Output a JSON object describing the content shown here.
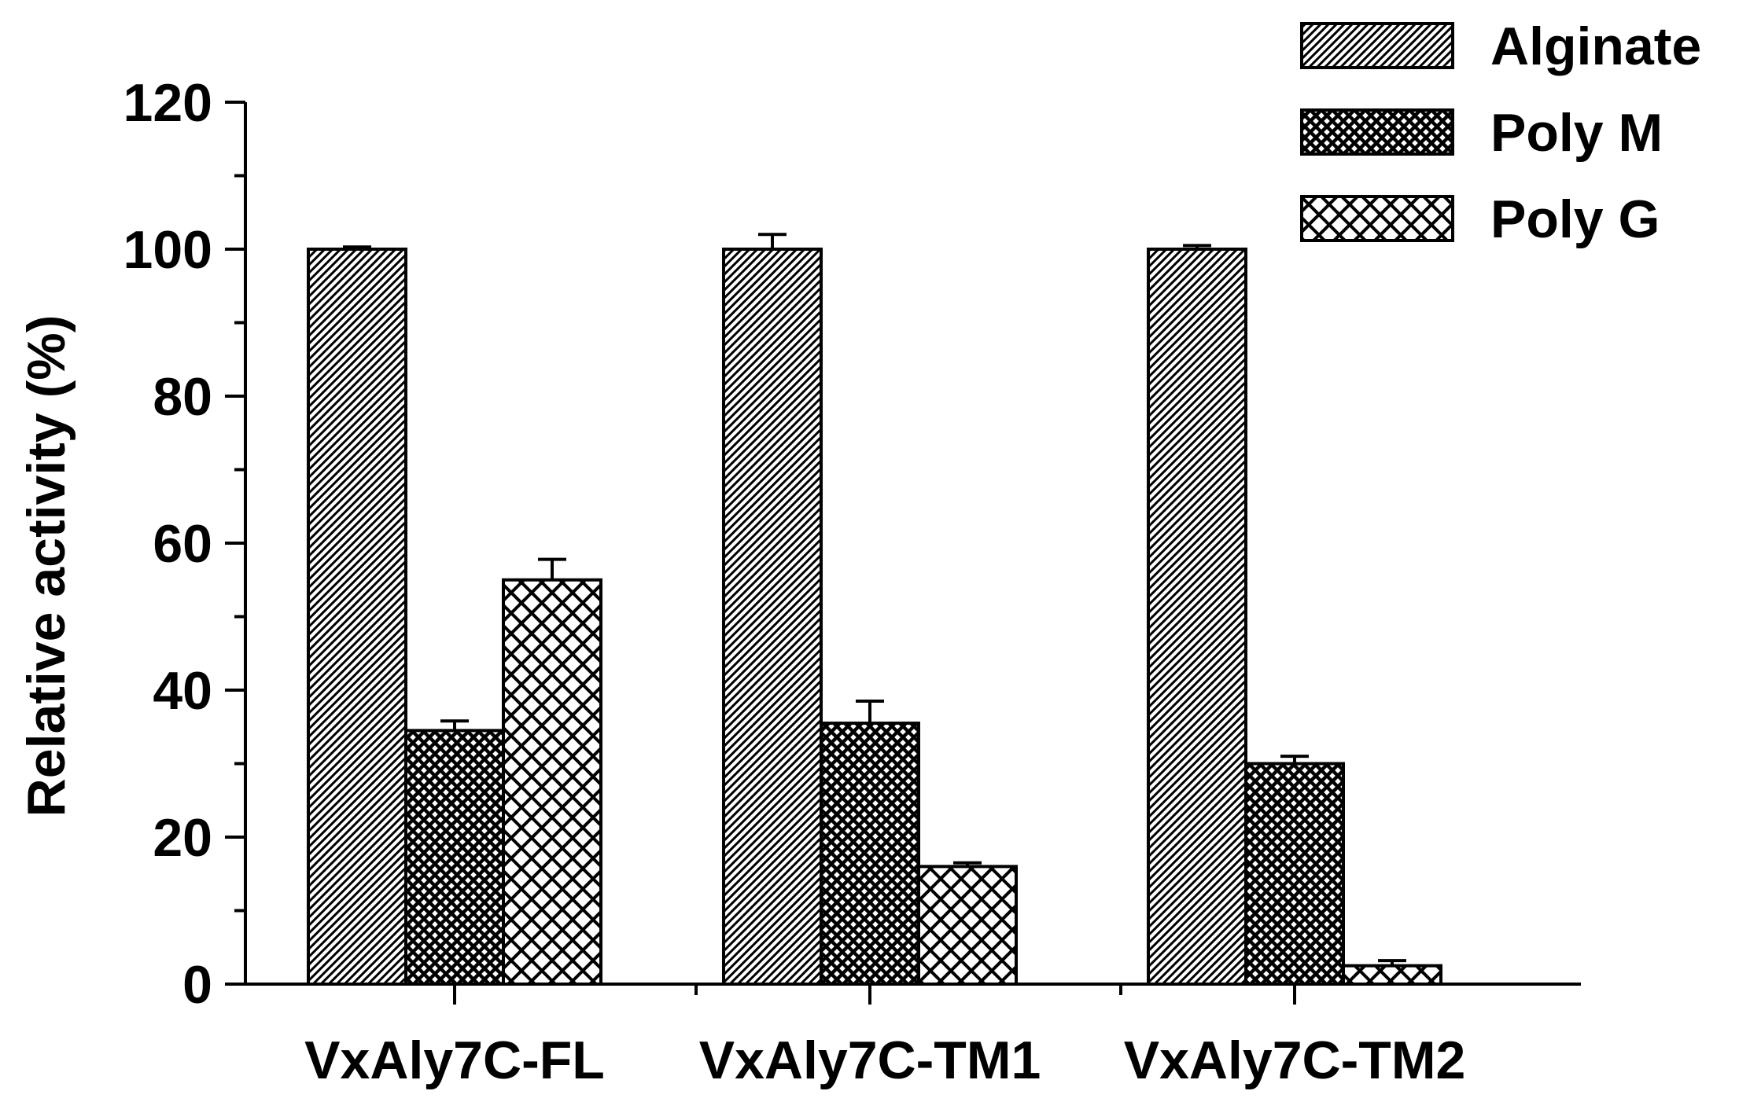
{
  "chart_data": {
    "type": "bar",
    "title": "",
    "xlabel": "",
    "ylabel": "Relative activity (%)",
    "ylim": [
      0,
      120
    ],
    "yticks": [
      0,
      20,
      40,
      60,
      80,
      100,
      120
    ],
    "categories": [
      "VxAly7C-FL",
      "VxAly7C-TM1",
      "VxAly7C-TM2"
    ],
    "series": [
      {
        "name": "Alginate",
        "values": [
          100,
          100,
          100
        ],
        "errors": [
          0.3,
          2.0,
          0.5
        ],
        "pattern": "diagonal"
      },
      {
        "name": "Poly M",
        "values": [
          34.5,
          35.5,
          30.0
        ],
        "errors": [
          1.3,
          3.0,
          1.0
        ],
        "pattern": "dense-crosshatch"
      },
      {
        "name": "Poly G",
        "values": [
          55.0,
          16.0,
          2.5
        ],
        "errors": [
          2.8,
          0.5,
          0.7
        ],
        "pattern": "open-crosshatch"
      }
    ],
    "legend": "top-right",
    "grid": false
  }
}
